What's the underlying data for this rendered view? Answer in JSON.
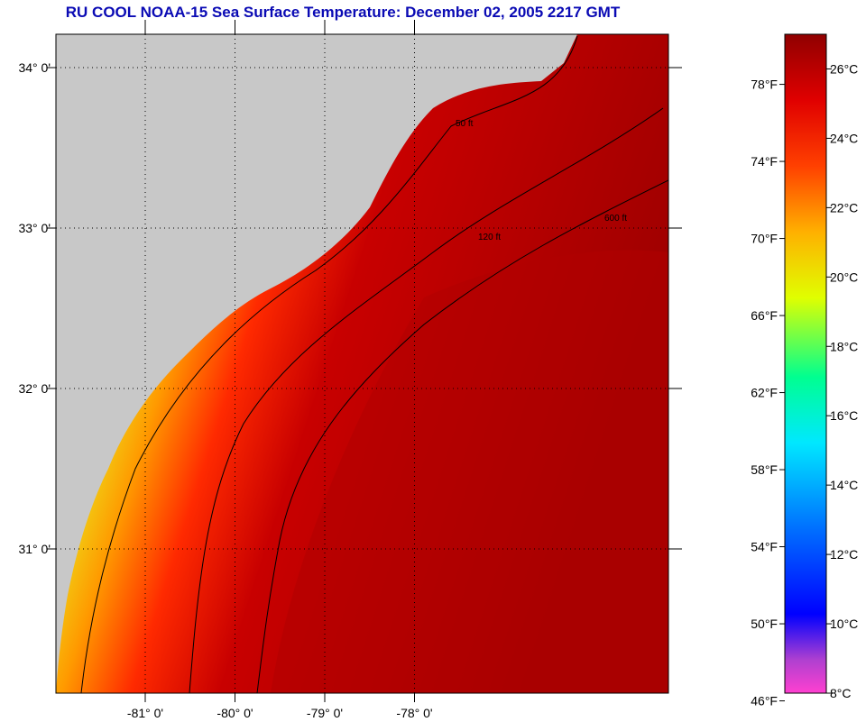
{
  "title": "RU COOL  NOAA-15  Sea Surface Temperature:  December 02, 2005 2217 GMT",
  "map": {
    "land_color": "#c8c8c8",
    "lat_labels": [
      {
        "lat": 34,
        "text": "34° 0'"
      },
      {
        "lat": 33,
        "text": "33° 0'"
      },
      {
        "lat": 32,
        "text": "32° 0'"
      },
      {
        "lat": 31,
        "text": "31° 0'"
      }
    ],
    "lon_labels": [
      {
        "lon": -81,
        "text": "-81° 0'"
      },
      {
        "lon": -80,
        "text": "-80° 0'"
      },
      {
        "lon": -79,
        "text": "-79° 0'"
      },
      {
        "lon": -78,
        "text": "-78° 0'"
      }
    ],
    "contour_labels": [
      "50 ft",
      "120 ft",
      "600 ft"
    ]
  },
  "colorbar": {
    "fahrenheit": [
      "78°F",
      "74°F",
      "70°F",
      "66°F",
      "62°F",
      "58°F",
      "54°F",
      "50°F",
      "46°F"
    ],
    "celsius": [
      "26°C",
      "24°C",
      "22°C",
      "20°C",
      "18°C",
      "16°C",
      "14°C",
      "12°C",
      "10°C",
      "8°C"
    ],
    "range_c": [
      8,
      27
    ]
  }
}
